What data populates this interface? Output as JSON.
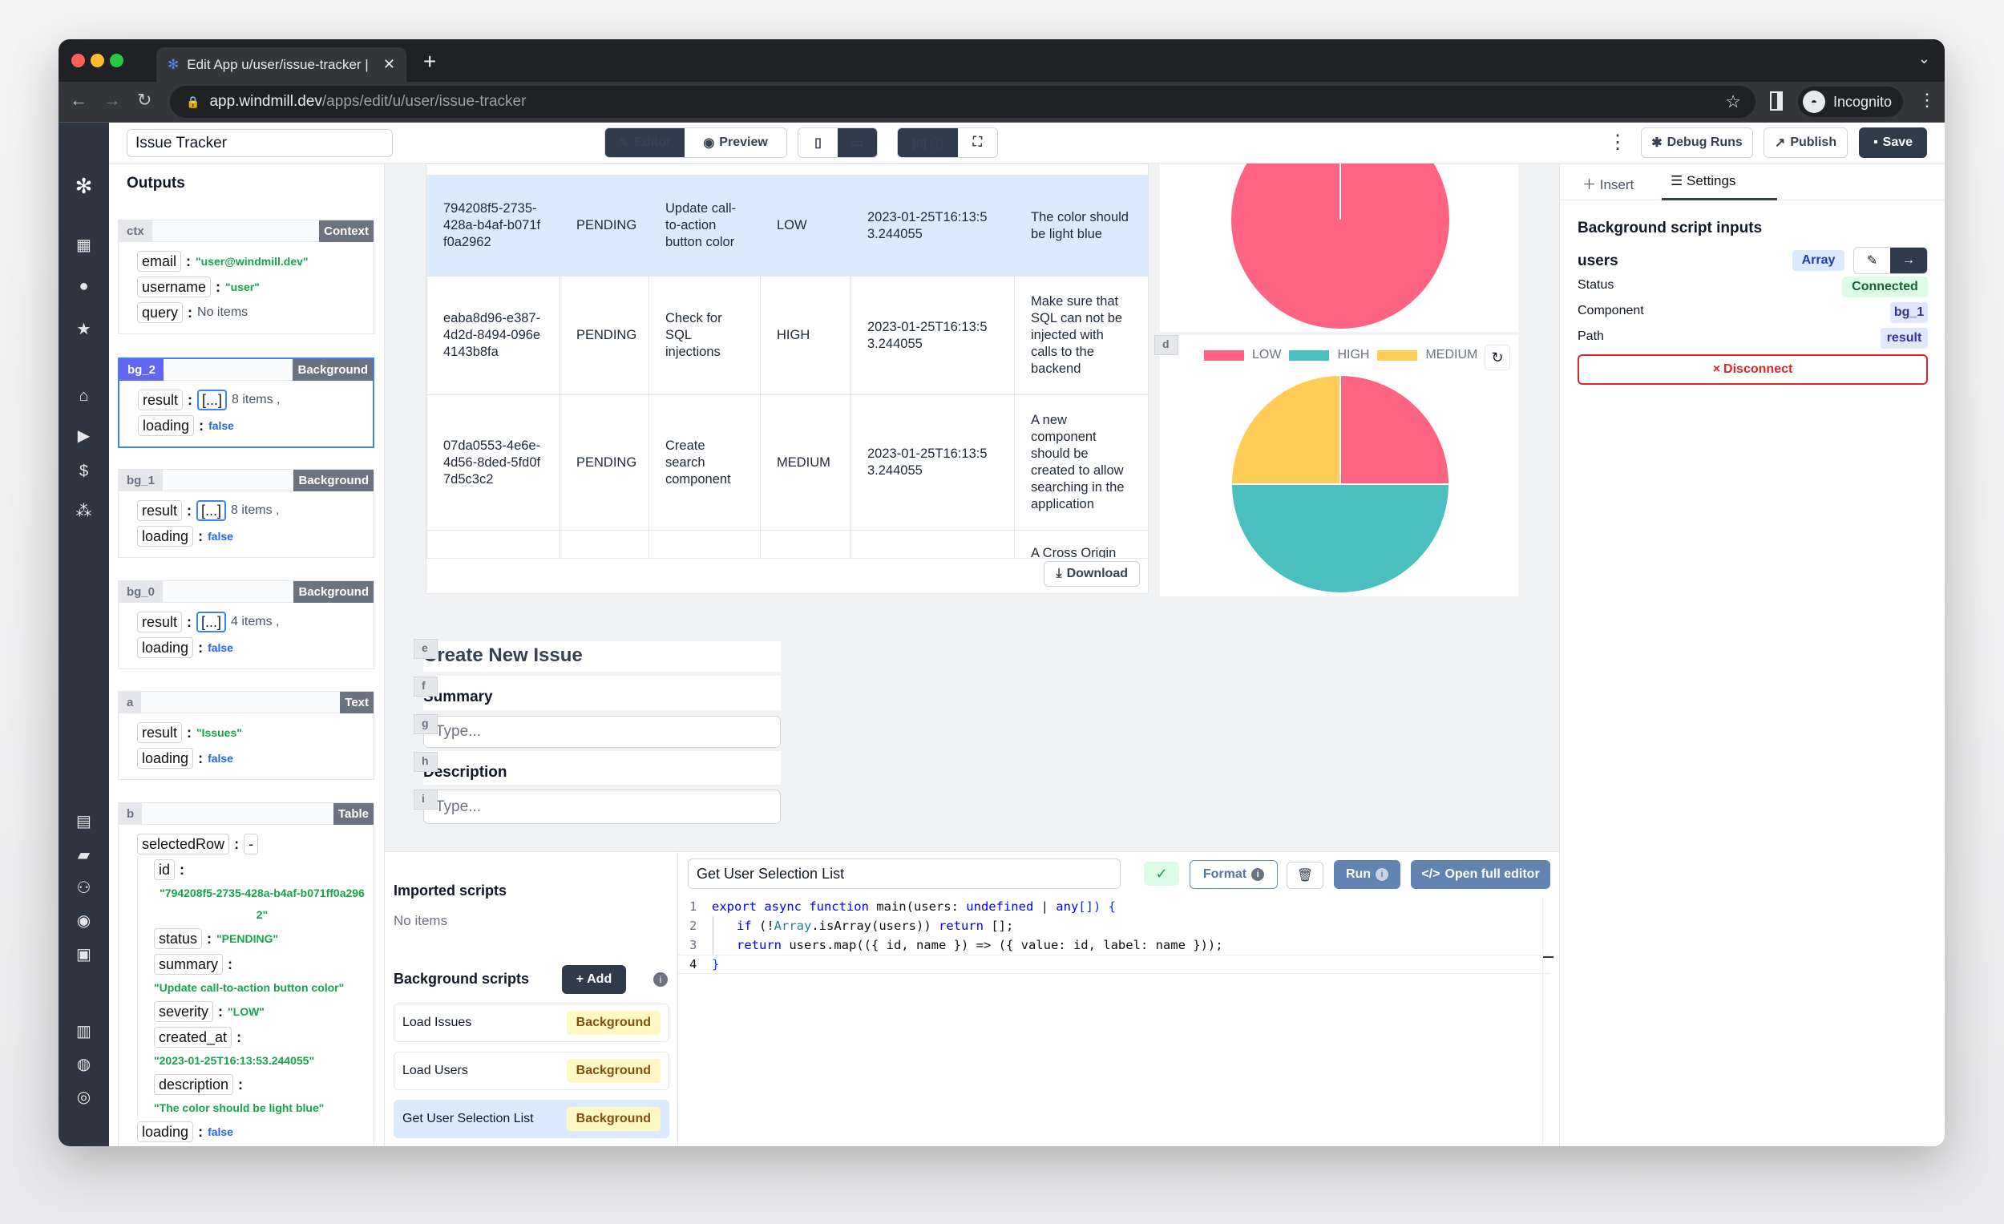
{
  "browser": {
    "tab_title": "Edit App u/user/issue-tracker |",
    "url_host": "app.windmill.dev",
    "url_path": "/apps/edit/u/user/issue-tracker",
    "profile": "Incognito"
  },
  "header": {
    "app_name": "Issue Tracker",
    "editor": "Editor",
    "preview": "Preview",
    "debug_runs": "Debug Runs",
    "publish": "Publish",
    "save": "Save"
  },
  "outputs": {
    "title": "Outputs",
    "cards": [
      {
        "id": "ctx",
        "type": "Context",
        "fields": [
          {
            "key": "email",
            "value": "\"user@windmill.dev\""
          },
          {
            "key": "username",
            "value": "\"user\""
          },
          {
            "key": "query",
            "value": "No items"
          }
        ]
      },
      {
        "id": "bg_2",
        "type": "Background",
        "fields": [
          {
            "key": "result",
            "value": "[...]",
            "count": "8 items ,"
          },
          {
            "key": "loading",
            "value": "false"
          }
        ]
      },
      {
        "id": "bg_1",
        "type": "Background",
        "fields": [
          {
            "key": "result",
            "value": "[...]",
            "count": "8 items ,"
          },
          {
            "key": "loading",
            "value": "false"
          }
        ]
      },
      {
        "id": "bg_0",
        "type": "Background",
        "fields": [
          {
            "key": "result",
            "value": "[...]",
            "count": "4 items ,"
          },
          {
            "key": "loading",
            "value": "false"
          }
        ]
      },
      {
        "id": "a",
        "type": "Text",
        "fields": [
          {
            "key": "result",
            "value": "\"Issues\""
          },
          {
            "key": "loading",
            "value": "false"
          }
        ]
      },
      {
        "id": "b",
        "type": "Table",
        "selected_row": {
          "key": "selectedRow",
          "toggle": "-",
          "fields": [
            {
              "key": "id",
              "value": "\"794208f5-2735-428a-b4af-b071ff0a2962\""
            },
            {
              "key": "status",
              "value": "\"PENDING\""
            },
            {
              "key": "summary",
              "value": "\"Update call-to-action button color\""
            },
            {
              "key": "severity",
              "value": "\"LOW\""
            },
            {
              "key": "created_at",
              "value": "\"2023-01-25T16:13:53.244055\""
            },
            {
              "key": "description",
              "value": "\"The color should be light blue\""
            }
          ]
        },
        "loading": {
          "key": "loading",
          "value": "false"
        }
      }
    ]
  },
  "table": {
    "rows": [
      {
        "id": "794208f5-2735-428a-b4af-b071ff0a2962",
        "status": "PENDING",
        "summary": "Update call-to-action button color",
        "severity": "LOW",
        "created_at": "2023-01-25T16:13:53.244055",
        "description": "The color should be light blue"
      },
      {
        "id": "eaba8d96-e387-4d2d-8494-096e4143b8fa",
        "status": "PENDING",
        "summary": "Check for SQL injections",
        "severity": "HIGH",
        "created_at": "2023-01-25T16:13:53.244055",
        "description": "Make sure that SQL can not be injected with calls to the backend"
      },
      {
        "id": "07da0553-4e6e-4d56-8ded-5fd0f7d5c3c2",
        "status": "PENDING",
        "summary": "Create search component",
        "severity": "MEDIUM",
        "created_at": "2023-01-25T16:13:53.244055",
        "description": "A new component should be created to allow searching in the application"
      }
    ],
    "partial_description": "A Cross Origin",
    "download": "Download"
  },
  "chart_data": [
    {
      "type": "pie",
      "values": [
        1
      ],
      "colors": [
        "#ff6384"
      ]
    },
    {
      "type": "pie",
      "labels": [
        "LOW",
        "HIGH",
        "MEDIUM"
      ],
      "values": [
        1,
        2,
        1
      ],
      "colors": [
        "#ff6384",
        "#4bc0c0",
        "#ffcd56"
      ],
      "legend": "top"
    }
  ],
  "component_tags": {
    "chart": "d",
    "title": "e",
    "summary_label": "f",
    "summary_input": "g",
    "description_label": "h",
    "description_input": "i"
  },
  "form": {
    "title": "Create New Issue",
    "summary_label": "Summary",
    "summary_placeholder": "Type...",
    "description_label": "Description",
    "description_placeholder": "Type..."
  },
  "right_panel": {
    "insert": "Insert",
    "settings": "Settings",
    "section_title": "Background script inputs",
    "input_name": "users",
    "input_type": "Array",
    "status_label": "Status",
    "status_value": "Connected",
    "component_label": "Component",
    "component_value": "bg_1",
    "path_label": "Path",
    "path_value": "result",
    "disconnect": "Disconnect"
  },
  "bottom": {
    "imported_title": "Imported scripts",
    "imported_empty": "No items",
    "bg_title": "Background scripts",
    "add": "Add",
    "scripts": [
      {
        "name": "Load Issues",
        "tag": "Background"
      },
      {
        "name": "Load Users",
        "tag": "Background"
      },
      {
        "name": "Get User Selection List",
        "tag": "Background"
      }
    ]
  },
  "editor": {
    "script_name": "Get User Selection List",
    "format": "Format",
    "run": "Run",
    "open_full": "Open full editor",
    "code": [
      [
        "export async function",
        " main(users: ",
        "undefined",
        " | ",
        "any",
        "[]) {"
      ],
      [
        "if",
        " (!",
        "Array",
        ".isArray(users)) ",
        "return",
        " [];"
      ],
      [
        "return",
        " users.map(({ id, name }) => ({ value: id, label: name }));"
      ],
      [
        "}"
      ]
    ],
    "line_numbers": [
      "1",
      "2",
      "3",
      "4"
    ]
  },
  "colors": {
    "accent": "#3b82f6",
    "dark_button": "#2f3a4a",
    "selected_row": "#dbeafe",
    "connected": "#dcfce7",
    "disconnect": "#dc2626"
  }
}
